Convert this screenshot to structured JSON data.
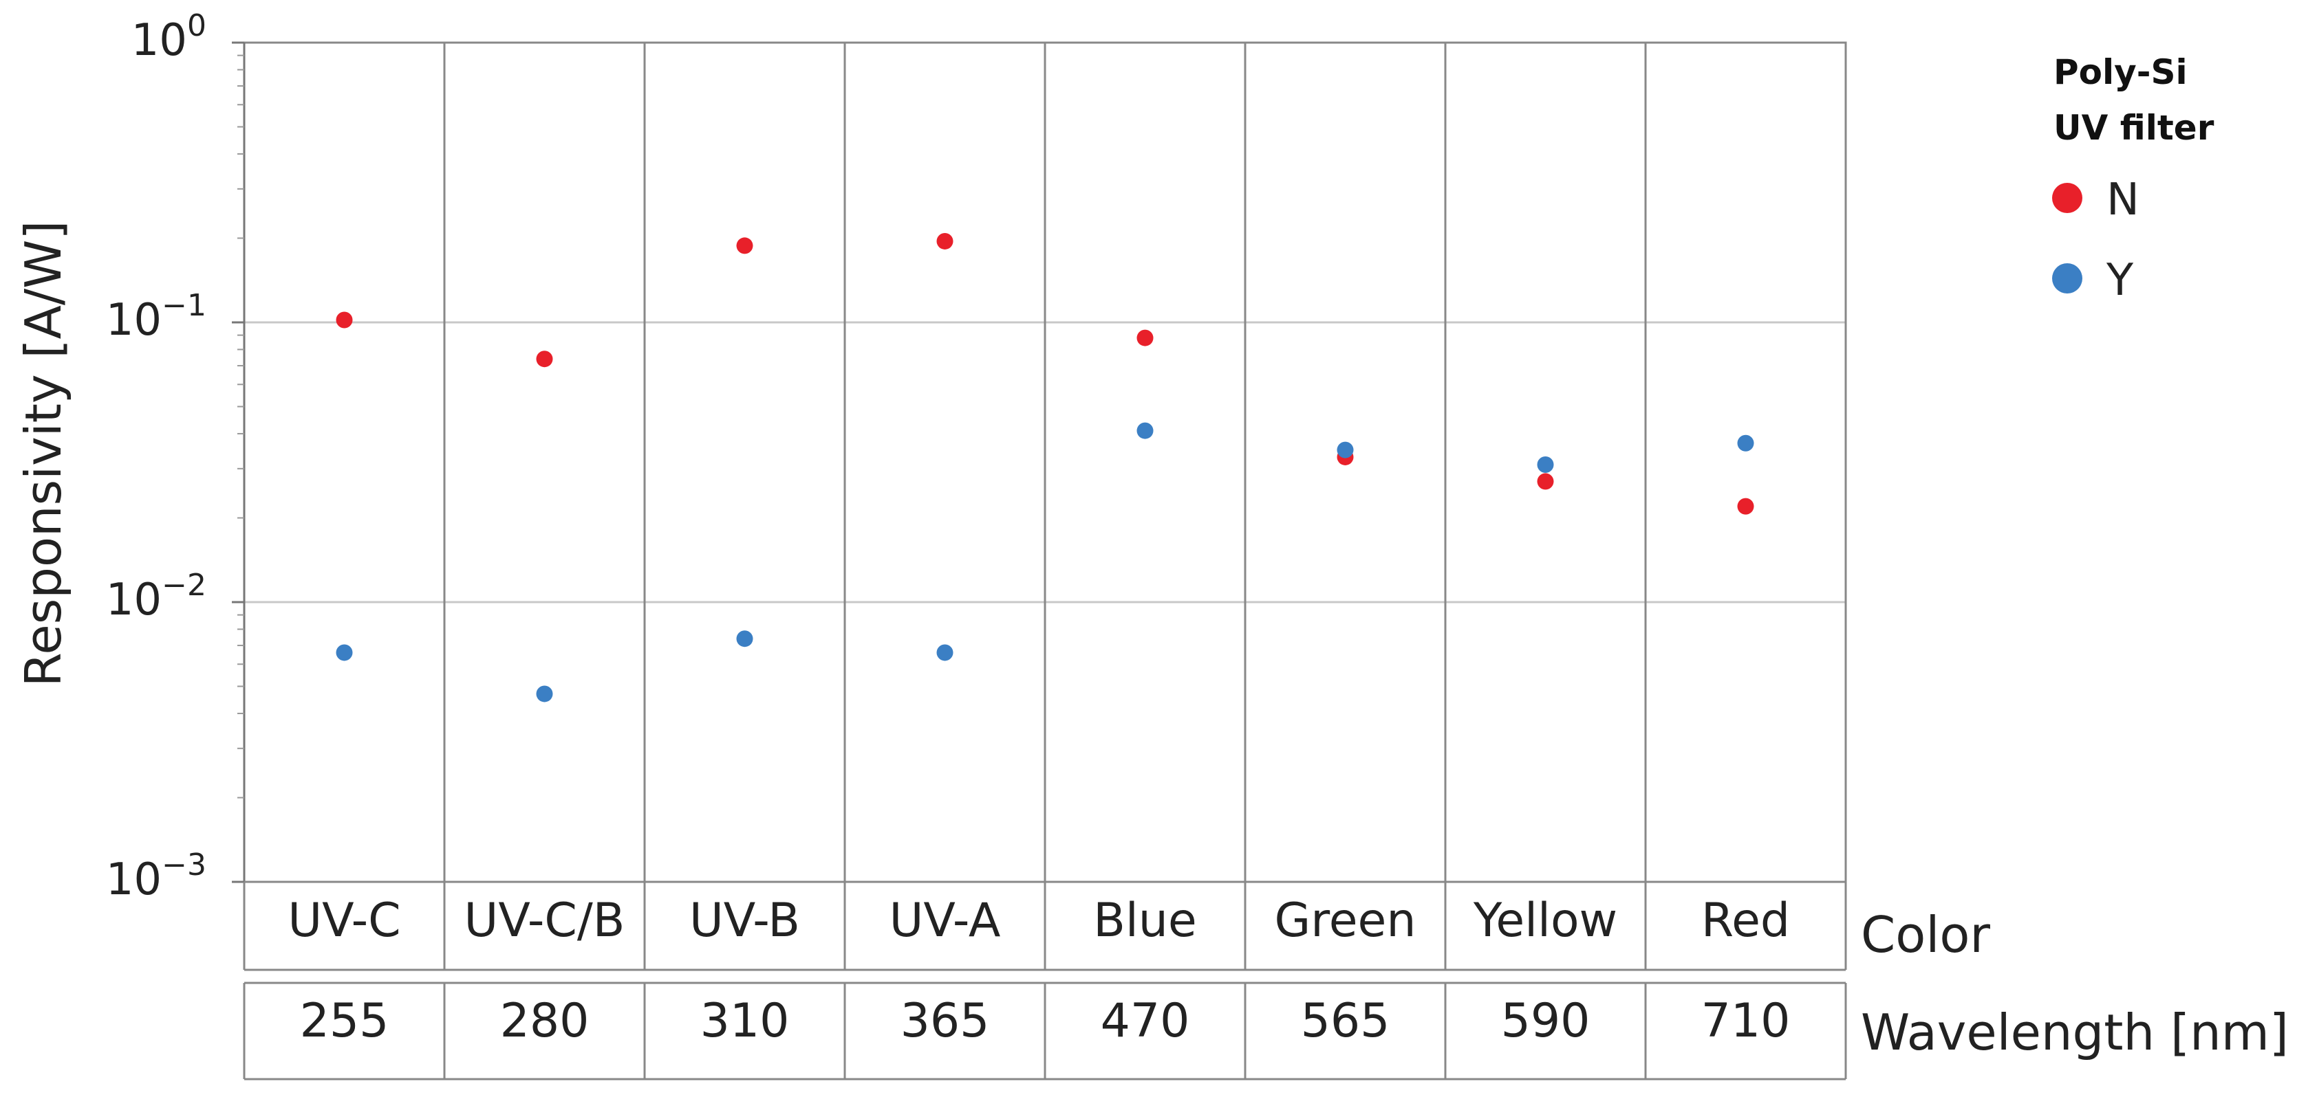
{
  "chart_data": {
    "type": "scatter",
    "ylabel": "Responsivity [A/W]",
    "yscale": "log",
    "ylim": [
      0.001,
      1
    ],
    "yticks": [
      {
        "value": 1,
        "base": "10",
        "exp": "0"
      },
      {
        "value": 0.1,
        "base": "10",
        "exp": "−1"
      },
      {
        "value": 0.01,
        "base": "10",
        "exp": "−2"
      },
      {
        "value": 0.001,
        "base": "10",
        "exp": "−3"
      }
    ],
    "grid": true,
    "categories": [
      "UV-C",
      "UV-C/B",
      "UV-B",
      "UV-A",
      "Blue",
      "Green",
      "Yellow",
      "Red"
    ],
    "wavelengths": [
      "255",
      "280",
      "310",
      "365",
      "470",
      "565",
      "590",
      "710"
    ],
    "row_labels": {
      "color": "Color",
      "wavelength": "Wavelength [nm]"
    },
    "legend": {
      "title_line1": "Poly-Si",
      "title_line2": "UV filter",
      "placement": "right"
    },
    "series": [
      {
        "name": "N",
        "color": "#e8202a",
        "values": [
          0.102,
          0.074,
          0.188,
          0.195,
          0.088,
          0.033,
          0.027,
          0.022
        ]
      },
      {
        "name": "Y",
        "color": "#3b7fc4",
        "values": [
          0.0066,
          0.0047,
          0.0074,
          0.0066,
          0.041,
          0.035,
          0.031,
          0.037
        ]
      }
    ]
  }
}
